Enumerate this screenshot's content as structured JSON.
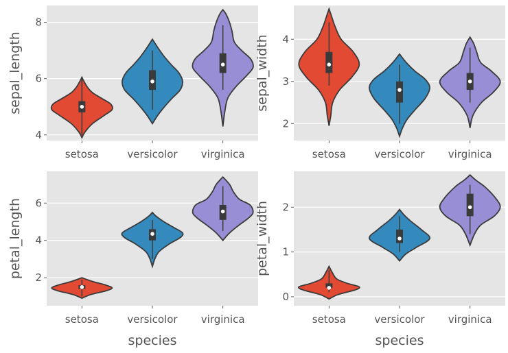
{
  "colors": {
    "setosa": "#e24a33",
    "versicolor": "#348abd",
    "virginica": "#988ed5"
  },
  "chart_data": [
    {
      "type": "violin",
      "ylabel": "sepal_length",
      "xlabel": "",
      "categories": [
        "setosa",
        "versicolor",
        "virginica"
      ],
      "ylim": [
        3.8,
        8.6
      ],
      "yticks": [
        4,
        6,
        8
      ],
      "grid": true,
      "series": [
        {
          "category": "setosa",
          "min": 4.0,
          "q1": 4.8,
          "median": 5.0,
          "q3": 5.2,
          "max": 6.0,
          "profile": [
            [
              3.9,
              0
            ],
            [
              4.1,
              0.1
            ],
            [
              4.4,
              0.35
            ],
            [
              4.7,
              0.75
            ],
            [
              4.9,
              1.0
            ],
            [
              5.1,
              0.95
            ],
            [
              5.3,
              0.65
            ],
            [
              5.5,
              0.35
            ],
            [
              5.7,
              0.18
            ],
            [
              5.9,
              0.07
            ],
            [
              6.05,
              0
            ]
          ]
        },
        {
          "category": "versicolor",
          "min": 4.9,
          "q1": 5.6,
          "median": 5.9,
          "q3": 6.3,
          "max": 7.0,
          "profile": [
            [
              4.4,
              0
            ],
            [
              4.7,
              0.18
            ],
            [
              5.0,
              0.4
            ],
            [
              5.3,
              0.65
            ],
            [
              5.6,
              0.92
            ],
            [
              5.9,
              1.0
            ],
            [
              6.2,
              0.88
            ],
            [
              6.5,
              0.62
            ],
            [
              6.8,
              0.38
            ],
            [
              7.1,
              0.18
            ],
            [
              7.4,
              0
            ]
          ]
        },
        {
          "category": "virginica",
          "min": 5.6,
          "q1": 6.2,
          "median": 6.5,
          "q3": 6.9,
          "max": 7.9,
          "profile": [
            [
              4.3,
              0
            ],
            [
              4.8,
              0.06
            ],
            [
              5.3,
              0.16
            ],
            [
              5.7,
              0.42
            ],
            [
              6.1,
              0.78
            ],
            [
              6.4,
              1.0
            ],
            [
              6.7,
              0.92
            ],
            [
              7.0,
              0.62
            ],
            [
              7.3,
              0.38
            ],
            [
              7.7,
              0.3
            ],
            [
              8.0,
              0.22
            ],
            [
              8.3,
              0.1
            ],
            [
              8.45,
              0
            ]
          ]
        }
      ]
    },
    {
      "type": "violin",
      "ylabel": "sepal_width",
      "xlabel": "",
      "categories": [
        "setosa",
        "versicolor",
        "virginica"
      ],
      "ylim": [
        1.6,
        4.8
      ],
      "yticks": [
        2,
        3,
        4
      ],
      "grid": true,
      "series": [
        {
          "category": "setosa",
          "min": 2.9,
          "q1": 3.2,
          "median": 3.4,
          "q3": 3.7,
          "max": 4.4,
          "profile": [
            [
              1.95,
              0
            ],
            [
              2.2,
              0.06
            ],
            [
              2.5,
              0.12
            ],
            [
              2.8,
              0.35
            ],
            [
              3.1,
              0.75
            ],
            [
              3.4,
              1.0
            ],
            [
              3.7,
              0.8
            ],
            [
              4.0,
              0.4
            ],
            [
              4.3,
              0.2
            ],
            [
              4.55,
              0.08
            ],
            [
              4.72,
              0
            ]
          ]
        },
        {
          "category": "versicolor",
          "min": 2.0,
          "q1": 2.5,
          "median": 2.8,
          "q3": 3.0,
          "max": 3.4,
          "profile": [
            [
              1.7,
              0
            ],
            [
              1.9,
              0.1
            ],
            [
              2.1,
              0.25
            ],
            [
              2.3,
              0.48
            ],
            [
              2.6,
              0.85
            ],
            [
              2.85,
              1.0
            ],
            [
              3.05,
              0.85
            ],
            [
              3.25,
              0.5
            ],
            [
              3.45,
              0.22
            ],
            [
              3.65,
              0
            ]
          ]
        },
        {
          "category": "virginica",
          "min": 2.5,
          "q1": 2.8,
          "median": 3.0,
          "q3": 3.2,
          "max": 3.8,
          "profile": [
            [
              1.9,
              0
            ],
            [
              2.2,
              0.1
            ],
            [
              2.5,
              0.38
            ],
            [
              2.75,
              0.78
            ],
            [
              3.0,
              1.0
            ],
            [
              3.25,
              0.7
            ],
            [
              3.45,
              0.35
            ],
            [
              3.7,
              0.22
            ],
            [
              3.9,
              0.12
            ],
            [
              4.05,
              0
            ]
          ]
        }
      ]
    },
    {
      "type": "violin",
      "ylabel": "petal_length",
      "xlabel": "species",
      "categories": [
        "setosa",
        "versicolor",
        "virginica"
      ],
      "ylim": [
        0.5,
        7.7
      ],
      "yticks": [
        2,
        4,
        6
      ],
      "grid": true,
      "series": [
        {
          "category": "setosa",
          "min": 1.0,
          "q1": 1.4,
          "median": 1.5,
          "q3": 1.6,
          "max": 1.9,
          "profile": [
            [
              0.9,
              0
            ],
            [
              1.1,
              0.3
            ],
            [
              1.3,
              0.8
            ],
            [
              1.45,
              1.0
            ],
            [
              1.6,
              0.8
            ],
            [
              1.8,
              0.35
            ],
            [
              2.0,
              0
            ]
          ]
        },
        {
          "category": "versicolor",
          "min": 3.0,
          "q1": 4.0,
          "median": 4.35,
          "q3": 4.6,
          "max": 5.1,
          "profile": [
            [
              2.6,
              0
            ],
            [
              3.0,
              0.08
            ],
            [
              3.4,
              0.22
            ],
            [
              3.8,
              0.55
            ],
            [
              4.15,
              0.92
            ],
            [
              4.4,
              1.0
            ],
            [
              4.7,
              0.7
            ],
            [
              5.0,
              0.38
            ],
            [
              5.3,
              0.12
            ],
            [
              5.5,
              0
            ]
          ]
        },
        {
          "category": "virginica",
          "min": 4.5,
          "q1": 5.1,
          "median": 5.55,
          "q3": 5.9,
          "max": 6.9,
          "profile": [
            [
              4.0,
              0
            ],
            [
              4.4,
              0.22
            ],
            [
              4.8,
              0.52
            ],
            [
              5.2,
              0.85
            ],
            [
              5.5,
              1.0
            ],
            [
              5.9,
              0.9
            ],
            [
              6.2,
              0.55
            ],
            [
              6.6,
              0.35
            ],
            [
              7.0,
              0.22
            ],
            [
              7.4,
              0
            ]
          ]
        }
      ]
    },
    {
      "type": "violin",
      "ylabel": "petal_width",
      "xlabel": "species",
      "categories": [
        "setosa",
        "versicolor",
        "virginica"
      ],
      "ylim": [
        -0.2,
        2.8
      ],
      "yticks": [
        0,
        1,
        2
      ],
      "grid": true,
      "series": [
        {
          "category": "setosa",
          "min": 0.1,
          "q1": 0.2,
          "median": 0.2,
          "q3": 0.3,
          "max": 0.6,
          "profile": [
            [
              -0.05,
              0
            ],
            [
              0.05,
              0.3
            ],
            [
              0.15,
              0.85
            ],
            [
              0.22,
              1.0
            ],
            [
              0.3,
              0.6
            ],
            [
              0.4,
              0.25
            ],
            [
              0.55,
              0.1
            ],
            [
              0.68,
              0
            ]
          ]
        },
        {
          "category": "versicolor",
          "min": 1.0,
          "q1": 1.2,
          "median": 1.3,
          "q3": 1.5,
          "max": 1.8,
          "profile": [
            [
              0.8,
              0
            ],
            [
              0.95,
              0.2
            ],
            [
              1.1,
              0.55
            ],
            [
              1.3,
              1.0
            ],
            [
              1.5,
              0.72
            ],
            [
              1.7,
              0.35
            ],
            [
              1.85,
              0.12
            ],
            [
              1.95,
              0
            ]
          ]
        },
        {
          "category": "virginica",
          "min": 1.4,
          "q1": 1.8,
          "median": 2.0,
          "q3": 2.3,
          "max": 2.5,
          "profile": [
            [
              1.15,
              0
            ],
            [
              1.4,
              0.15
            ],
            [
              1.6,
              0.35
            ],
            [
              1.8,
              0.8
            ],
            [
              2.0,
              1.0
            ],
            [
              2.2,
              0.85
            ],
            [
              2.45,
              0.5
            ],
            [
              2.6,
              0.2
            ],
            [
              2.72,
              0
            ]
          ]
        }
      ]
    }
  ]
}
